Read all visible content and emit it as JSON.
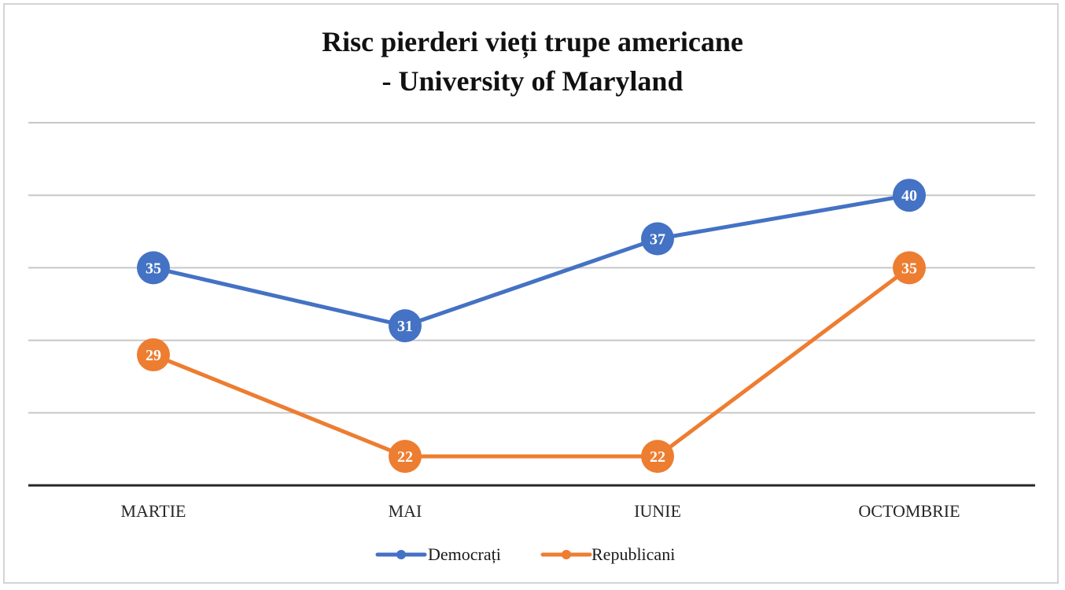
{
  "chart_data": {
    "type": "line",
    "title_line1": "Risc pierderi vieți trupe americane",
    "title_line2": "- University of Maryland",
    "categories": [
      "MARTIE",
      "MAI",
      "IUNIE",
      "OCTOMBRIE"
    ],
    "series": [
      {
        "name": "Democrați",
        "values": [
          35,
          31,
          37,
          40
        ],
        "color": "#4472c4"
      },
      {
        "name": "Republicani",
        "values": [
          29,
          22,
          22,
          35
        ],
        "color": "#ed7d31"
      }
    ],
    "ylim": [
      20,
      45
    ],
    "grid": true,
    "data_labels": true,
    "legend_position": "bottom"
  }
}
